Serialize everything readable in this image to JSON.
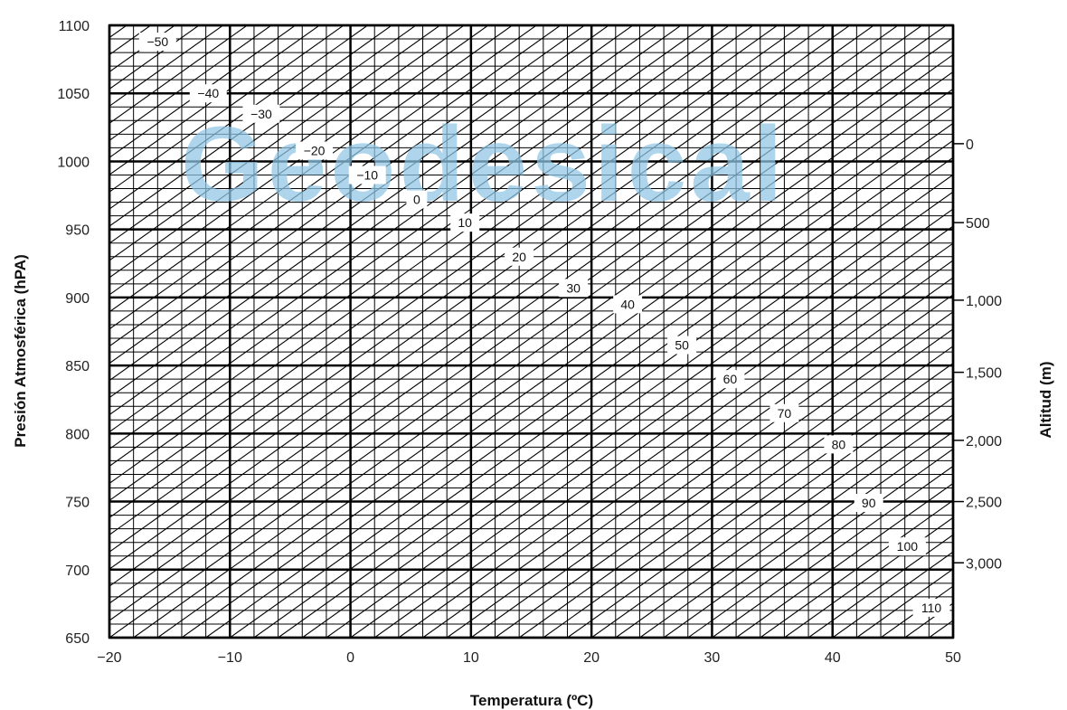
{
  "watermark": "Geodesical",
  "chart_data": {
    "type": "line",
    "xlabel": "Temperatura (ºC)",
    "ylabel": "Presión Atmosférica (hPA)",
    "y2label": "Altitud (m)",
    "xlim": [
      -20,
      50
    ],
    "ylim": [
      650,
      1100
    ],
    "x_ticks": [
      -20,
      -10,
      0,
      10,
      20,
      30,
      40,
      50
    ],
    "x_tick_labels": [
      "−20",
      "−10",
      "0",
      "10",
      "20",
      "30",
      "40",
      "50"
    ],
    "y_ticks": [
      650,
      700,
      750,
      800,
      850,
      900,
      950,
      1000,
      1050,
      1100
    ],
    "y_tick_labels": [
      "650",
      "700",
      "750",
      "800",
      "850",
      "900",
      "950",
      "1000",
      "1050",
      "1100"
    ],
    "y2_ticks": [
      {
        "pressure": 1013,
        "label": "0"
      },
      {
        "pressure": 955,
        "label": "500"
      },
      {
        "pressure": 898,
        "label": "1,000"
      },
      {
        "pressure": 845,
        "label": "1,500"
      },
      {
        "pressure": 795,
        "label": "2,000"
      },
      {
        "pressure": 750,
        "label": "2,500"
      },
      {
        "pressure": 705,
        "label": "3,000"
      }
    ],
    "grid": {
      "major_x_step": 10,
      "minor_x_step": 2,
      "major_y_step": 50,
      "minor_y_step": 10
    },
    "isoline_labels": [
      {
        "value": -50,
        "label": "−50",
        "t": -16.0,
        "p": 1088
      },
      {
        "value": -40,
        "label": "−40",
        "t": -11.8,
        "p": 1050
      },
      {
        "value": -30,
        "label": "−30",
        "t": -7.4,
        "p": 1035
      },
      {
        "value": -20,
        "label": "−20",
        "t": -3.0,
        "p": 1008
      },
      {
        "value": -10,
        "label": "−10",
        "t": 1.4,
        "p": 990
      },
      {
        "value": 0,
        "label": "0",
        "t": 5.5,
        "p": 972
      },
      {
        "value": 10,
        "label": "10",
        "t": 9.5,
        "p": 955
      },
      {
        "value": 20,
        "label": "20",
        "t": 14.0,
        "p": 930
      },
      {
        "value": 30,
        "label": "30",
        "t": 18.5,
        "p": 907
      },
      {
        "value": 40,
        "label": "40",
        "t": 23.0,
        "p": 895
      },
      {
        "value": 50,
        "label": "50",
        "t": 27.5,
        "p": 865
      },
      {
        "value": 60,
        "label": "60",
        "t": 31.5,
        "p": 840
      },
      {
        "value": 70,
        "label": "70",
        "t": 36.0,
        "p": 815
      },
      {
        "value": 80,
        "label": "80",
        "t": 40.5,
        "p": 792
      },
      {
        "value": 90,
        "label": "90",
        "t": 43.0,
        "p": 749
      },
      {
        "value": 100,
        "label": "100",
        "t": 46.2,
        "p": 717
      },
      {
        "value": 110,
        "label": "110",
        "t": 48.2,
        "p": 672
      }
    ],
    "isolines": {
      "description_values": "diagonal lines of constant value, slope in pressure per degree",
      "slope_hpa_per_degC": 6.3,
      "spacing_degC": 2,
      "anchor_t": -20,
      "anchor_p": 650
    }
  }
}
